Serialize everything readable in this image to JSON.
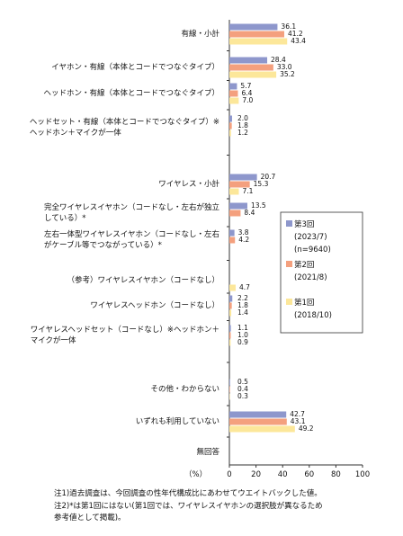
{
  "chart_data": {
    "type": "bar",
    "orientation": "horizontal",
    "categories": [
      "有線・小計",
      "イヤホン・有線（本体とコードでつなぐタイプ）",
      "ヘッドホン・有線（本体とコードでつなぐタイプ）",
      "ヘッドセット・有線（本体とコードでつなぐタイプ）※\nヘッドホン＋マイクが一体",
      "ワイヤレス・小計",
      "完全ワイヤレスイヤホン（コードなし・左右が独立\nしている）*",
      "左右一体型ワイヤレスイヤホン（コードなし・左右\nがケーブル等でつながっている）*",
      "（参考）ワイヤレスイヤホン（コードなし）",
      "ワイヤレスヘッドホン（コードなし）",
      "ワイヤレスヘッドセット（コードなし）※ヘッドホン＋\nマイクが一体",
      "その他・わからない",
      "いずれも利用していない",
      "無回答"
    ],
    "series": [
      {
        "name": "第3回\n(2023/7)\n(n=9640)",
        "color": "#8e97cc",
        "values": [
          36.1,
          28.4,
          5.7,
          2.0,
          20.7,
          13.5,
          3.8,
          null,
          2.2,
          1.1,
          0.5,
          42.7,
          null
        ],
        "value_labels": [
          "36.1",
          "28.4",
          "5.7",
          "2.0",
          "20.7",
          "13.5",
          "3.8",
          null,
          "2.2",
          "1.1",
          "0.5",
          "42.7",
          null
        ]
      },
      {
        "name": "第2回\n(2021/8)",
        "color": "#f4a07e",
        "values": [
          41.2,
          33.0,
          6.4,
          1.8,
          15.3,
          8.4,
          4.2,
          null,
          1.8,
          1.0,
          0.4,
          43.1,
          null
        ],
        "value_labels": [
          "41.2",
          "33.0",
          "6.4",
          "1.8",
          "15.3",
          "8.4",
          "4.2",
          null,
          "1.8",
          "1.0",
          "0.4",
          "43.1",
          null
        ]
      },
      {
        "name": "第1回\n(2018/10)",
        "color": "#fce79a",
        "values": [
          43.4,
          35.2,
          7.0,
          1.2,
          7.1,
          null,
          null,
          4.7,
          1.4,
          0.9,
          0.3,
          49.2,
          null
        ],
        "value_labels": [
          "43.4",
          "35.2",
          "7.0",
          "1.2",
          "7.1",
          null,
          null,
          "4.7",
          "1.4",
          "0.9",
          "0.3",
          "49.2",
          null
        ]
      }
    ],
    "xlim": [
      0,
      100
    ],
    "xticks": [
      0,
      20,
      40,
      60,
      80,
      100
    ],
    "x_label": "（%）",
    "notes": [
      "注1)過去調査は、今回調査の性年代構成比にあわせてウエイトバックした値。",
      "注2)*は第1回にはない(第1回では、ワイヤレスイヤホンの選択肢が異なるため\n参考値として掲載)。"
    ]
  }
}
